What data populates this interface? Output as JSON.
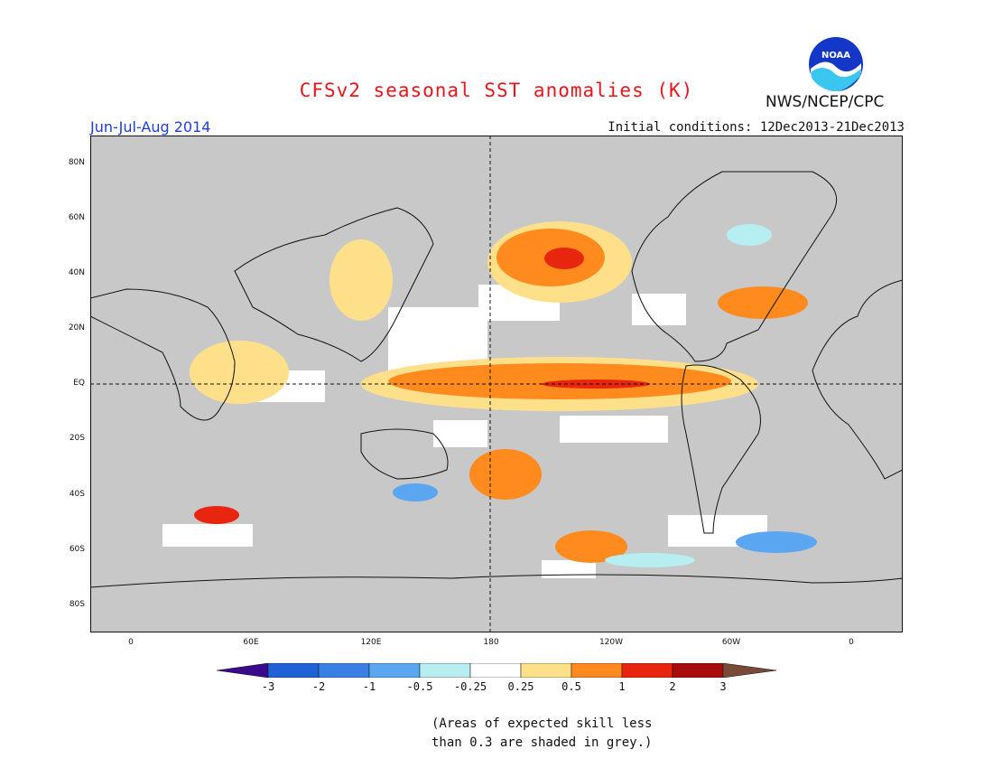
{
  "header": {
    "title": "CFSv2 seasonal SST anomalies (K)",
    "agency": "NWS/NCEP/CPC",
    "logo_text": "NOAA",
    "period": "Jun-Jul-Aug 2014",
    "initial_conditions": "Initial conditions: 12Dec2013-21Dec2013"
  },
  "map": {
    "lat_labels": [
      "80N",
      "60N",
      "40N",
      "20N",
      "EQ",
      "20S",
      "40S",
      "60S",
      "80S"
    ],
    "lon_labels": [
      "0",
      "60E",
      "120E",
      "180",
      "120W",
      "60W",
      "0"
    ],
    "background_color": "#c8c8c8",
    "land_color": "#ffffff"
  },
  "colorbar": {
    "labels": [
      "-3",
      "-2",
      "-1",
      "-0.5",
      "-0.25",
      "0.25",
      "0.5",
      "1",
      "2",
      "3"
    ],
    "colors": [
      "#3a0a8c",
      "#1f62d6",
      "#3a7fe6",
      "#5aa6f0",
      "#b6eef2",
      "#ffffff",
      "#ffe08a",
      "#ff8a1e",
      "#e8260f",
      "#a80c0c",
      "#7a4a38"
    ]
  },
  "note": {
    "line1": "(Areas of expected skill less",
    "line2": "than 0.3 are shaded in grey.)"
  }
}
